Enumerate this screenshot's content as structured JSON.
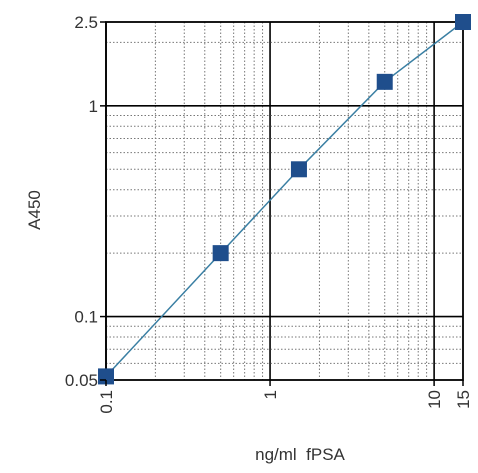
{
  "chart_data": {
    "type": "scatter",
    "title": "",
    "xlabel": "ng/ml  fPSA",
    "ylabel": "A450",
    "x_scale": "log",
    "y_scale": "log",
    "xlim": [
      0.1,
      15
    ],
    "ylim": [
      0.05,
      2.5
    ],
    "x_ticks": [
      {
        "value": 0.1,
        "label": "0.1"
      },
      {
        "value": 1,
        "label": "1"
      },
      {
        "value": 10,
        "label": "10"
      },
      {
        "value": 15,
        "label": "15"
      }
    ],
    "y_ticks": [
      {
        "value": 0.05,
        "label": "0.05"
      },
      {
        "value": 0.1,
        "label": "0.1"
      },
      {
        "value": 1,
        "label": "1"
      },
      {
        "value": 2.5,
        "label": "2.5"
      }
    ],
    "grid": true,
    "series": [
      {
        "x": [
          0.1,
          0.5,
          1.5,
          5,
          15
        ],
        "y": [
          0.052,
          0.2,
          0.5,
          1.3,
          2.5
        ],
        "marker": "square",
        "line": true
      }
    ],
    "colors": {
      "marker": "#1f4e8c",
      "line": "#3a7fa3",
      "major_grid": "#000000",
      "minor_grid": "#777777",
      "axis": "#000000"
    }
  }
}
